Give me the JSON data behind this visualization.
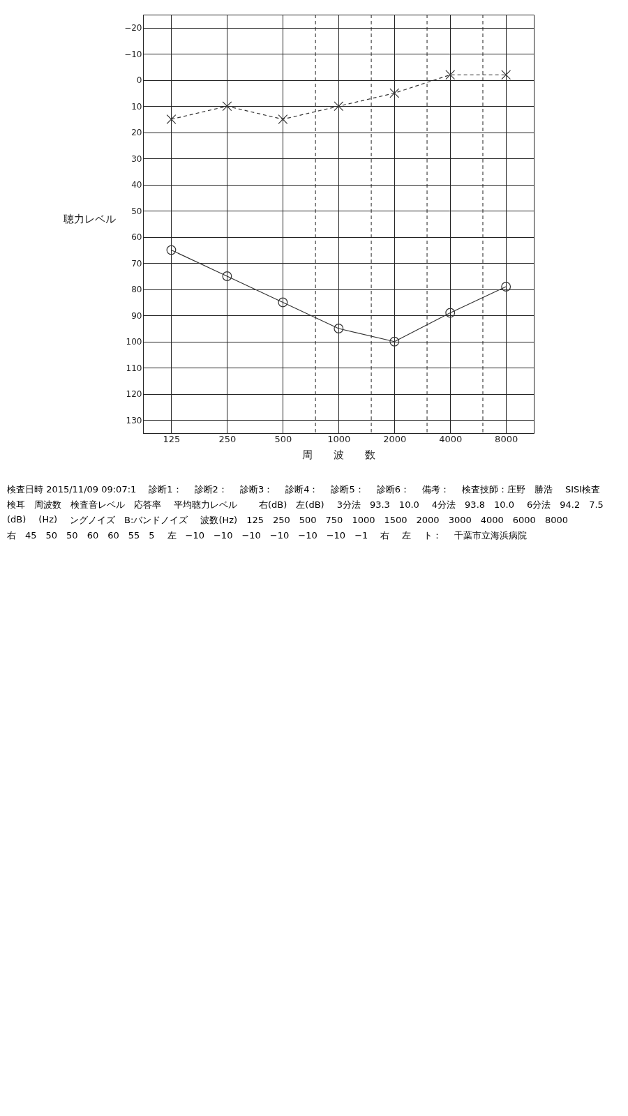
{
  "chart_data": {
    "type": "line",
    "xlabel": "周　　波　　数",
    "ylabel": "聴力レベル",
    "log": "x",
    "grid": true,
    "x": [
      125,
      250,
      500,
      1000,
      2000,
      4000,
      8000
    ],
    "xlim": [
      88,
      11300
    ],
    "xticks": [
      125,
      250,
      500,
      1000,
      2000,
      4000,
      8000
    ],
    "ylim": [
      135,
      -25
    ],
    "yticks": [
      -20,
      -10,
      0,
      10,
      20,
      30,
      40,
      50,
      60,
      70,
      80,
      90,
      100,
      110,
      120,
      130
    ],
    "series": [
      {
        "color": "#333333",
        "marker": "circle",
        "line_style": "solid",
        "values": [
          65,
          75,
          85,
          95,
          100,
          89,
          79
        ]
      },
      {
        "color": "#333333",
        "marker": "cross",
        "line_style": "dashed",
        "values": [
          15,
          10,
          15,
          10,
          5,
          -2,
          -2
        ]
      }
    ],
    "ref_lines": [
      {
        "axis": "x",
        "value": 750,
        "label": null,
        "line_style": "dashed"
      },
      {
        "axis": "x",
        "value": 1500,
        "label": null,
        "line_style": "dashed"
      },
      {
        "axis": "x",
        "value": 3000,
        "label": null,
        "line_style": "dashed"
      },
      {
        "axis": "x",
        "value": 6000,
        "label": null,
        "line_style": "dashed"
      }
    ],
    "annotations": [
      "検査日時 2015/11/09 09:07:1",
      "診断1：",
      "診断2：",
      "診断3：",
      "診断4：",
      "診断5：",
      "診断6：",
      "備考：",
      "検査技師：庄野　勝浩",
      "SISI検査",
      "検耳　周波数　検査音レベル　応答率",
      "平均聴力レベル",
      "　右(dB)　左(dB)",
      "3分法　93.3　10.0",
      "4分法　93.8　10.0",
      "6分法　94.2　7.5",
      "(dB)",
      "(Hz)",
      "ングノイズ　B:バンドノイズ",
      "波数(Hz)　125　250　500　750　1000　1500　2000　3000　4000　6000　8000",
      "右　45　50　50　60　60　55　5",
      "左　−10　−10　−10　−10　−10　−10　−1",
      "右",
      "左",
      "ト：",
      "千葉市立海浜病院"
    ]
  }
}
